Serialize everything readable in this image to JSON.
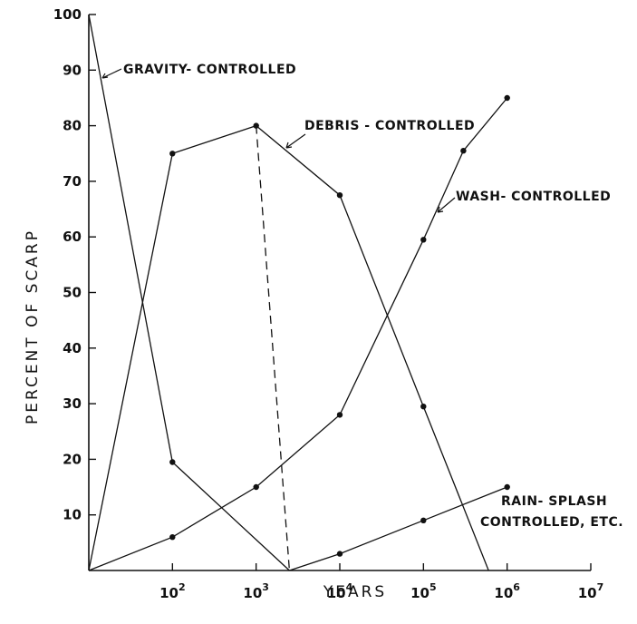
{
  "chart_data": {
    "type": "line",
    "xlabel": "YEARS",
    "ylabel": "PERCENT OF SCARP",
    "x_scale": "log",
    "xlim": [
      10,
      10000000
    ],
    "ylim": [
      0,
      100
    ],
    "x_ticks": [
      {
        "value": 100,
        "base": "10",
        "exp": "2"
      },
      {
        "value": 1000,
        "base": "10",
        "exp": "3"
      },
      {
        "value": 10000,
        "base": "10",
        "exp": "4"
      },
      {
        "value": 100000,
        "base": "10",
        "exp": "5"
      },
      {
        "value": 1000000,
        "base": "10",
        "exp": "6"
      },
      {
        "value": 10000000,
        "base": "10",
        "exp": "7"
      }
    ],
    "y_ticks": [
      "10",
      "20",
      "30",
      "40",
      "50",
      "60",
      "70",
      "80",
      "90",
      "100"
    ],
    "grid": false,
    "series": [
      {
        "name": "GRAVITY-CONTROLLED",
        "label": "GRAVITY- CONTROLLED",
        "markers": false,
        "points": [
          [
            10,
            100
          ],
          [
            100,
            19.5
          ],
          [
            2500,
            0
          ]
        ],
        "marked": [
          [
            100,
            19.5
          ]
        ]
      },
      {
        "name": "DEBRIS-CONTROLLED",
        "label": "DEBRIS - CONTROLLED",
        "markers": true,
        "points": [
          [
            10,
            0
          ],
          [
            100,
            75
          ],
          [
            1000,
            80
          ],
          [
            10000,
            67.5
          ],
          [
            100000,
            29.5
          ],
          [
            600000,
            0
          ]
        ],
        "marked": [
          [
            100,
            75
          ],
          [
            1000,
            80
          ],
          [
            10000,
            67.5
          ],
          [
            100000,
            29.5
          ]
        ]
      },
      {
        "name": "WASH-CONTROLLED",
        "label": "WASH- CONTROLLED",
        "markers": true,
        "points": [
          [
            10,
            0
          ],
          [
            100,
            6
          ],
          [
            1000,
            15
          ],
          [
            10000,
            28
          ],
          [
            100000,
            59.5
          ],
          [
            300000,
            75.5
          ],
          [
            1000000,
            85
          ]
        ],
        "marked": [
          [
            100,
            6
          ],
          [
            1000,
            15
          ],
          [
            10000,
            28
          ],
          [
            100000,
            59.5
          ],
          [
            300000,
            75.5
          ],
          [
            1000000,
            85
          ]
        ]
      },
      {
        "name": "RAIN-SPLASH CONTROLLED, ETC.",
        "label": "RAIN- SPLASH",
        "label2": "CONTROLLED, ETC.",
        "markers": true,
        "points": [
          [
            2500,
            0
          ],
          [
            10000,
            3
          ],
          [
            100000,
            9
          ],
          [
            1000000,
            15
          ]
        ],
        "marked": [
          [
            10000,
            3
          ],
          [
            100000,
            9
          ],
          [
            1000000,
            15
          ]
        ]
      }
    ],
    "connector": {
      "style": "dashed",
      "points": [
        [
          1000,
          80
        ],
        [
          2500,
          0
        ]
      ]
    }
  }
}
